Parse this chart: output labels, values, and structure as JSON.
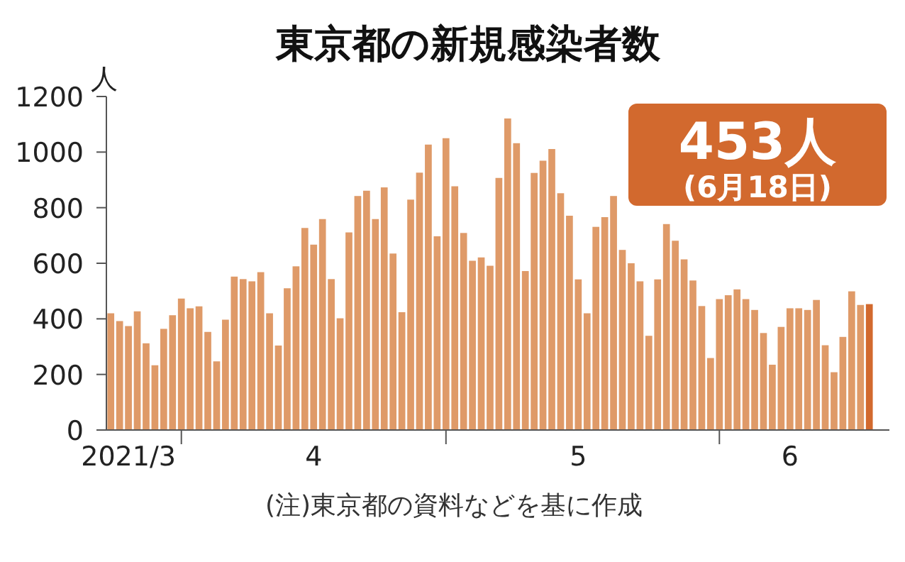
{
  "chart_data": {
    "type": "bar",
    "title": "東京都の新規感染者数",
    "ylabel": "人",
    "x": [
      "2021-03-24",
      "2021-03-25",
      "2021-03-26",
      "2021-03-27",
      "2021-03-28",
      "2021-03-29",
      "2021-03-30",
      "2021-03-31",
      "2021-04-01",
      "2021-04-02",
      "2021-04-03",
      "2021-04-04",
      "2021-04-05",
      "2021-04-06",
      "2021-04-07",
      "2021-04-08",
      "2021-04-09",
      "2021-04-10",
      "2021-04-11",
      "2021-04-12",
      "2021-04-13",
      "2021-04-14",
      "2021-04-15",
      "2021-04-16",
      "2021-04-17",
      "2021-04-18",
      "2021-04-19",
      "2021-04-20",
      "2021-04-21",
      "2021-04-22",
      "2021-04-23",
      "2021-04-24",
      "2021-04-25",
      "2021-04-26",
      "2021-04-27",
      "2021-04-28",
      "2021-04-29",
      "2021-04-30",
      "2021-05-01",
      "2021-05-02",
      "2021-05-03",
      "2021-05-04",
      "2021-05-05",
      "2021-05-06",
      "2021-05-07",
      "2021-05-08",
      "2021-05-09",
      "2021-05-10",
      "2021-05-11",
      "2021-05-12",
      "2021-05-13",
      "2021-05-14",
      "2021-05-15",
      "2021-05-16",
      "2021-05-17",
      "2021-05-18",
      "2021-05-19",
      "2021-05-20",
      "2021-05-21",
      "2021-05-22",
      "2021-05-23",
      "2021-05-24",
      "2021-05-25",
      "2021-05-26",
      "2021-05-27",
      "2021-05-28",
      "2021-05-29",
      "2021-05-30",
      "2021-05-31",
      "2021-06-01",
      "2021-06-02",
      "2021-06-03",
      "2021-06-04",
      "2021-06-05",
      "2021-06-06",
      "2021-06-07",
      "2021-06-08",
      "2021-06-09",
      "2021-06-10",
      "2021-06-11",
      "2021-06-12",
      "2021-06-13",
      "2021-06-14",
      "2021-06-15",
      "2021-06-16",
      "2021-06-17",
      "2021-06-18"
    ],
    "values": [
      420,
      392,
      374,
      427,
      312,
      233,
      364,
      413,
      473,
      438,
      445,
      353,
      247,
      397,
      552,
      543,
      535,
      568,
      420,
      304,
      510,
      589,
      727,
      667,
      759,
      543,
      402,
      711,
      842,
      861,
      759,
      873,
      635,
      424,
      829,
      926,
      1027,
      697,
      1050,
      877,
      709,
      609,
      621,
      591,
      907,
      1121,
      1032,
      572,
      925,
      969,
      1011,
      852,
      771,
      542,
      420,
      731,
      766,
      842,
      648,
      600,
      535,
      339,
      542,
      741,
      681,
      614,
      538,
      446,
      259,
      471,
      485,
      506,
      471,
      432,
      349,
      235,
      371,
      438,
      438,
      432,
      468,
      305,
      208,
      335,
      499,
      450,
      453
    ],
    "colors": [
      "#df9a68",
      "#df9a68",
      "#df9a68",
      "#df9a68",
      "#df9a68",
      "#df9a68",
      "#df9a68",
      "#df9a68",
      "#df9a68",
      "#df9a68",
      "#df9a68",
      "#df9a68",
      "#df9a68",
      "#df9a68",
      "#df9a68",
      "#df9a68",
      "#df9a68",
      "#df9a68",
      "#df9a68",
      "#df9a68",
      "#df9a68",
      "#df9a68",
      "#df9a68",
      "#df9a68",
      "#df9a68",
      "#df9a68",
      "#df9a68",
      "#df9a68",
      "#df9a68",
      "#df9a68",
      "#df9a68",
      "#df9a68",
      "#df9a68",
      "#df9a68",
      "#df9a68",
      "#df9a68",
      "#df9a68",
      "#df9a68",
      "#df9a68",
      "#df9a68",
      "#df9a68",
      "#df9a68",
      "#df9a68",
      "#df9a68",
      "#df9a68",
      "#df9a68",
      "#df9a68",
      "#df9a68",
      "#df9a68",
      "#df9a68",
      "#df9a68",
      "#df9a68",
      "#df9a68",
      "#df9a68",
      "#df9a68",
      "#df9a68",
      "#df9a68",
      "#df9a68",
      "#df9a68",
      "#df9a68",
      "#df9a68",
      "#df9a68",
      "#df9a68",
      "#df9a68",
      "#df9a68",
      "#df9a68",
      "#df9a68",
      "#df9a68",
      "#df9a68",
      "#df9a68",
      "#df9a68",
      "#df9a68",
      "#df9a68",
      "#df9a68",
      "#df9a68",
      "#df9a68",
      "#df9a68",
      "#df9a68",
      "#df9a68",
      "#df9a68",
      "#df9a68",
      "#df9a68",
      "#df9a68",
      "#df9a68",
      "#df9a68",
      "#df9a68",
      "#d2692e"
    ],
    "xlim": [
      "2021-03-23T12:00",
      "2021-06-18T16:00"
    ],
    "xticks": [
      {
        "value": "2021-03-26",
        "label": "2021/3"
      },
      {
        "value": "2021-04-01",
        "label": null
      },
      {
        "value": "2021-04-16",
        "label": "4"
      },
      {
        "value": "2021-05-01",
        "label": null
      },
      {
        "value": "2021-05-16",
        "label": "5"
      },
      {
        "value": "2021-06-01",
        "label": null
      },
      {
        "value": "2021-06-09",
        "label": "6"
      }
    ],
    "ylim": [
      0,
      1200
    ],
    "yticks": [
      0,
      200,
      400,
      600,
      800,
      1000,
      1200
    ],
    "grid": false,
    "annotations": [
      "453人",
      "(6月18日)",
      "(注)東京都の資料などを基に作成"
    ]
  }
}
